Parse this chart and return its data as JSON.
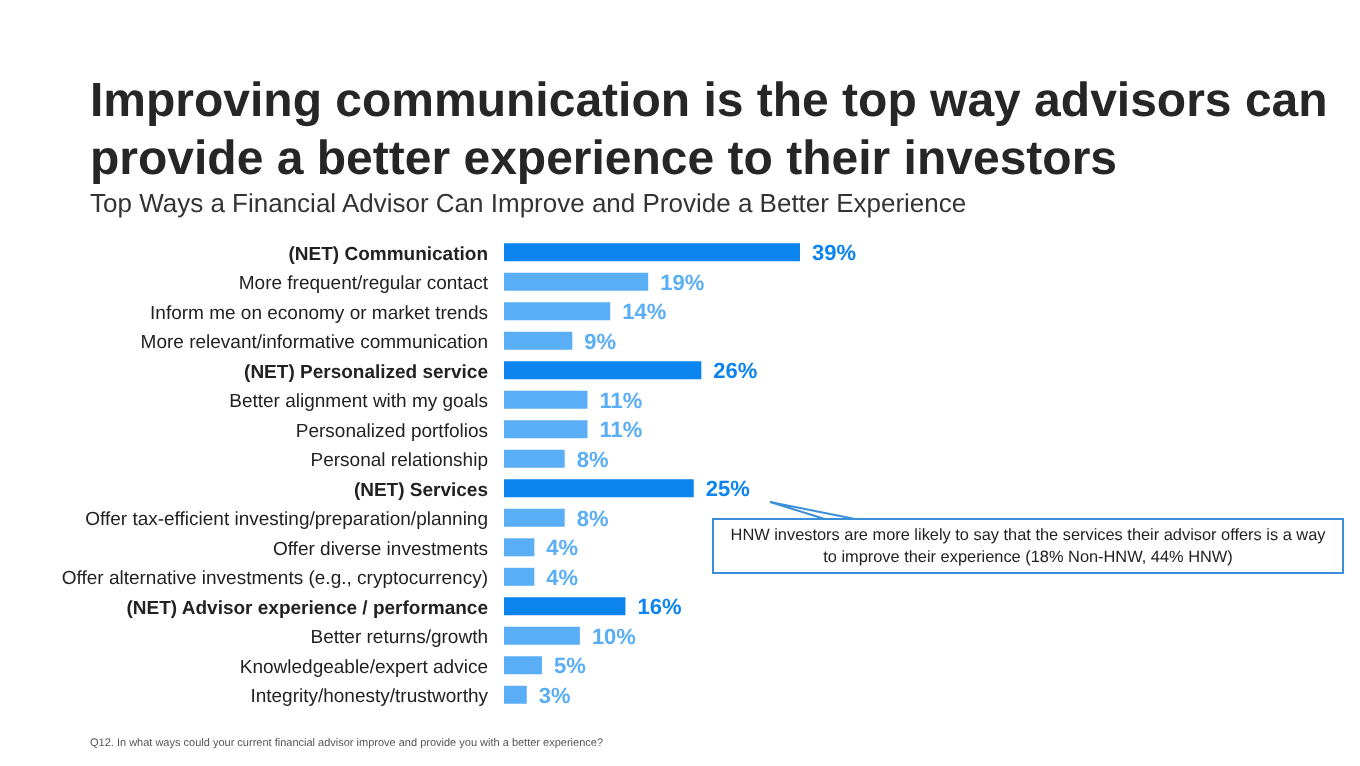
{
  "chart_data": {
    "type": "bar",
    "orientation": "horizontal",
    "title": "Improving communication is the top way advisors can provide a better experience to their investors",
    "subtitle": "Top Ways a Financial Advisor Can Improve and Provide a Better Experience",
    "categories": [
      "(NET) Communication",
      "More frequent/regular contact",
      "Inform me on economy or market trends",
      "More relevant/informative communication",
      "(NET) Personalized service",
      "Better alignment with my goals",
      "Personalized portfolios",
      "Personal relationship",
      "(NET) Services",
      "Offer tax-efficient investing/preparation/planning",
      "Offer diverse investments",
      "Offer alternative investments (e.g., cryptocurrency)",
      "(NET) Advisor experience / performance",
      "Better returns/growth",
      "Knowledgeable/expert advice",
      "Integrity/honesty/trustworthy"
    ],
    "values": [
      39,
      19,
      14,
      9,
      26,
      11,
      11,
      8,
      25,
      8,
      4,
      4,
      16,
      10,
      5,
      3
    ],
    "value_labels": [
      "39%",
      "19%",
      "14%",
      "9%",
      "26%",
      "11%",
      "11%",
      "8%",
      "25%",
      "8%",
      "4%",
      "4%",
      "16%",
      "10%",
      "5%",
      "3%"
    ],
    "colors": [
      "#0b84ee",
      "#5aaef5",
      "#5aaef5",
      "#5aaef5",
      "#0b84ee",
      "#5aaef5",
      "#5aaef5",
      "#5aaef5",
      "#0b84ee",
      "#5aaef5",
      "#5aaef5",
      "#5aaef5",
      "#0b84ee",
      "#5aaef5",
      "#5aaef5",
      "#5aaef5"
    ],
    "annotations": [
      "HNW investors are more likely to say that the services their advisor offers is a way to improve their experience (18% Non-HNW, 44% HNW)",
      "Q12. In what ways could your current financial advisor improve and provide you with a better experience?"
    ]
  }
}
